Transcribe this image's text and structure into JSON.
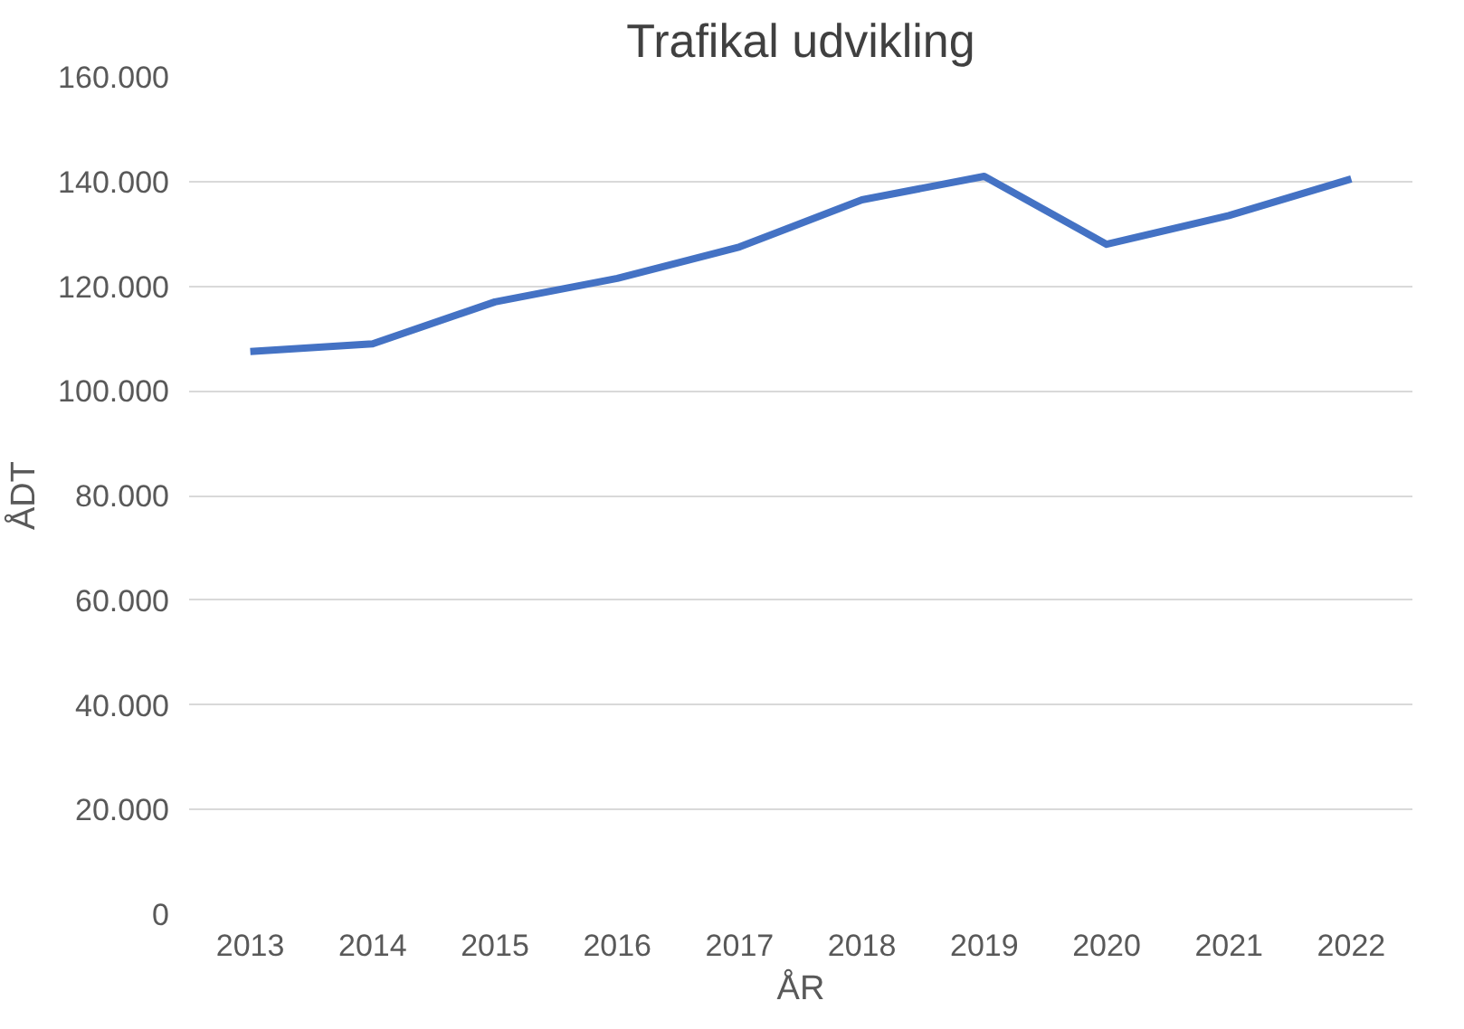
{
  "chart_data": {
    "type": "line",
    "title": "Trafikal udvikling",
    "xlabel": "ÅR",
    "ylabel": "ÅDT",
    "categories": [
      "2013",
      "2014",
      "2015",
      "2016",
      "2017",
      "2018",
      "2019",
      "2020",
      "2021",
      "2022"
    ],
    "series": [
      {
        "color": "#4472c4",
        "values": [
          107500,
          109000,
          117000,
          121500,
          127500,
          136500,
          141000,
          128000,
          133500,
          140500
        ]
      }
    ],
    "ylim": [
      0,
      160000
    ],
    "yticks": [
      {
        "value": 0,
        "label": "0"
      },
      {
        "value": 20000,
        "label": "20.000"
      },
      {
        "value": 40000,
        "label": "40.000"
      },
      {
        "value": 60000,
        "label": "60.000"
      },
      {
        "value": 80000,
        "label": "80.000"
      },
      {
        "value": 100000,
        "label": "100.000"
      },
      {
        "value": 120000,
        "label": "120.000"
      },
      {
        "value": 140000,
        "label": "140.000"
      },
      {
        "value": 160000,
        "label": "160.000"
      }
    ],
    "grid": "y",
    "marker": "none",
    "line_style": "solid"
  }
}
